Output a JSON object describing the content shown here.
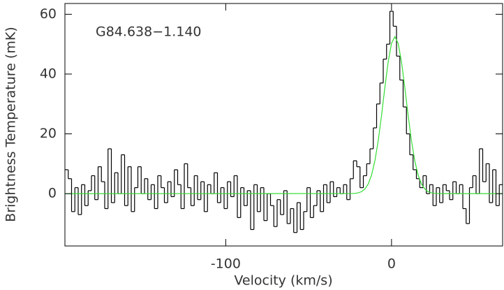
{
  "chart_data": {
    "type": "step",
    "xlabel": "Velocity (km/s)",
    "ylabel": "Brightness Temperature (mK)",
    "annotation": "G84.638−1.140",
    "xlim": [
      -197,
      67
    ],
    "ylim": [
      -17.5,
      63.6
    ],
    "xticks": [
      -100,
      0
    ],
    "yticks": [
      0,
      20,
      40,
      60
    ],
    "series": [
      {
        "color": "#000000",
        "x": [
          -196,
          -194,
          -192,
          -190,
          -188,
          -186,
          -184,
          -182,
          -180,
          -178,
          -176,
          -174,
          -172,
          -170,
          -168,
          -166,
          -164,
          -162,
          -160,
          -158,
          -156,
          -154,
          -152,
          -150,
          -148,
          -146,
          -144,
          -142,
          -140,
          -138,
          -136,
          -134,
          -132,
          -130,
          -128,
          -126,
          -124,
          -122,
          -120,
          -118,
          -116,
          -114,
          -112,
          -110,
          -108,
          -106,
          -104,
          -102,
          -100,
          -98,
          -96,
          -94,
          -92,
          -90,
          -88,
          -86,
          -84,
          -82,
          -80,
          -78,
          -76,
          -74,
          -72,
          -70,
          -68,
          -66,
          -64,
          -62,
          -60,
          -58,
          -56,
          -54,
          -52,
          -50,
          -48,
          -46,
          -44,
          -42,
          -40,
          -38,
          -36,
          -34,
          -32,
          -30,
          -28,
          -26,
          -24,
          -22,
          -20,
          -18,
          -16,
          -14,
          -12,
          -10,
          -8,
          -6,
          -4,
          -2,
          0,
          2,
          4,
          6,
          8,
          10,
          12,
          14,
          16,
          18,
          20,
          22,
          24,
          26,
          28,
          30,
          32,
          34,
          36,
          38,
          40,
          42,
          44,
          46,
          48,
          50,
          52,
          54,
          56,
          58,
          60,
          62,
          64,
          66
        ],
        "values": [
          8,
          5,
          -6,
          2,
          -7,
          3,
          -4,
          1,
          6,
          -2,
          9,
          4,
          -5,
          15,
          -3,
          7,
          0,
          13,
          -4,
          9,
          -6,
          2,
          9,
          0,
          5,
          -2,
          3,
          -5,
          6,
          2,
          -3,
          4,
          -1,
          8,
          3,
          -5,
          10,
          2,
          -4,
          6,
          -2,
          4,
          -6,
          3,
          0,
          7,
          -3,
          2,
          -5,
          4,
          -1,
          6,
          -8,
          2,
          -4,
          1,
          -12,
          3,
          -6,
          2,
          -9,
          0,
          -4,
          -11,
          -2,
          -7,
          1,
          -10,
          -5,
          -13,
          -3,
          -12,
          -6,
          2,
          -8,
          -4,
          1,
          -6,
          3,
          -3,
          4,
          -1,
          2,
          0,
          3,
          -2,
          5,
          11,
          9,
          2,
          6,
          10,
          15,
          22,
          30,
          37,
          45,
          50,
          61,
          56,
          46,
          38,
          29,
          20,
          13,
          8,
          5,
          2,
          6,
          0,
          3,
          -4,
          2,
          -3,
          3,
          1,
          -2,
          4,
          0,
          3,
          -5,
          -10,
          2,
          6,
          0,
          15,
          4,
          10,
          -3,
          8,
          -4,
          3
        ]
      },
      {
        "type": "line",
        "color": "#33dd33",
        "x": [
          -197,
          -24,
          -22,
          -20,
          -18,
          -16,
          -14,
          -12,
          -10,
          -8,
          -6,
          -4,
          -2,
          0,
          2,
          4,
          6,
          8,
          10,
          12,
          14,
          16,
          18,
          20,
          22,
          24,
          26,
          28,
          67
        ],
        "values": [
          0,
          0.04,
          0.1,
          0.28,
          0.7,
          1.59,
          3.29,
          6.3,
          11.07,
          17.81,
          26.28,
          35.58,
          44.15,
          50.28,
          52.5,
          50.28,
          44.15,
          35.58,
          26.28,
          17.81,
          11.07,
          6.3,
          3.29,
          1.59,
          0.7,
          0.28,
          0.1,
          0.04,
          0
        ]
      }
    ]
  }
}
